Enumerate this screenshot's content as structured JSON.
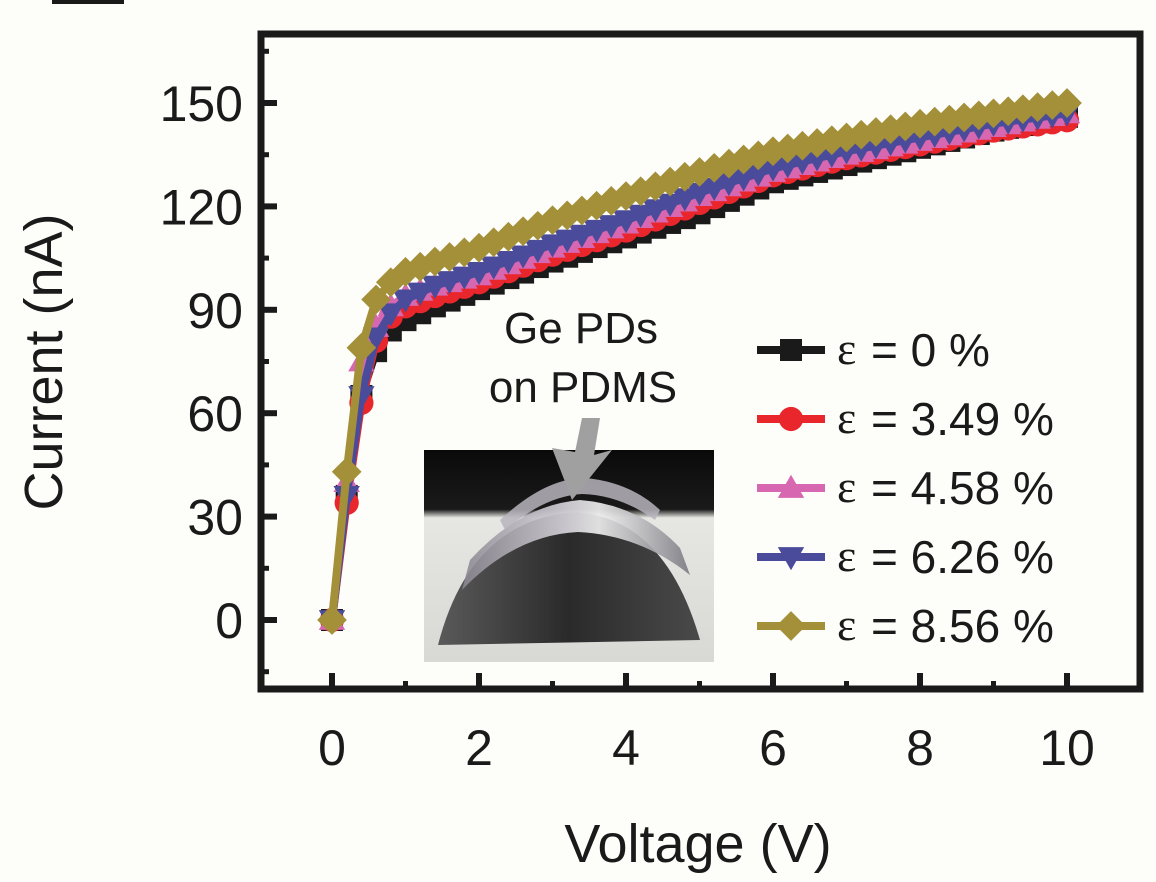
{
  "chart_data": {
    "type": "line",
    "title": "",
    "xlabel": "Voltage (V)",
    "ylabel": "Current (nA)",
    "xlim": [
      -1,
      10.8
    ],
    "ylim": [
      -20,
      170
    ],
    "xticks": [
      0,
      2,
      4,
      6,
      8,
      10
    ],
    "xtick_labels": [
      "0",
      "2",
      "4",
      "6",
      "8",
      "10"
    ],
    "yticks": [
      0,
      30,
      60,
      90,
      120,
      150
    ],
    "ytick_labels": [
      "0",
      "30",
      "60",
      "90",
      "120",
      "150"
    ],
    "grid": false,
    "legend_position": "center-right",
    "annotation": {
      "line1": "Ge PDs",
      "line2": "on PDMS",
      "inset": "photo of bent Ge photodetectors on PDMS over a curved mold",
      "arrow": "gray arrow pointing to device"
    },
    "x_step": 0.2,
    "series": [
      {
        "name": "ε = 0 %",
        "eps": "ε",
        "label": "= 0 %",
        "color": "#1a1a1a",
        "marker": "square",
        "anchors": [
          [
            0,
            0
          ],
          [
            0.2,
            36
          ],
          [
            0.4,
            65
          ],
          [
            0.6,
            78
          ],
          [
            0.8,
            84
          ],
          [
            1.0,
            87
          ],
          [
            1.4,
            91
          ],
          [
            2,
            96
          ],
          [
            3,
            104
          ],
          [
            4,
            111
          ],
          [
            5,
            118
          ],
          [
            6,
            127
          ],
          [
            7,
            132
          ],
          [
            8,
            137
          ],
          [
            9,
            142
          ],
          [
            10,
            146
          ]
        ]
      },
      {
        "name": "ε = 3.49 %",
        "eps": "ε",
        "label": "= 3.49 %",
        "color": "#e8262b",
        "marker": "circle",
        "anchors": [
          [
            0,
            0
          ],
          [
            0.2,
            34
          ],
          [
            0.4,
            63
          ],
          [
            0.6,
            81
          ],
          [
            0.8,
            88
          ],
          [
            1.0,
            91
          ],
          [
            1.4,
            94
          ],
          [
            2,
            98
          ],
          [
            3,
            106
          ],
          [
            4,
            113
          ],
          [
            5,
            121
          ],
          [
            6,
            129
          ],
          [
            7,
            134
          ],
          [
            8,
            138
          ],
          [
            9,
            142
          ],
          [
            10,
            145
          ]
        ]
      },
      {
        "name": "ε = 4.58 %",
        "eps": "ε",
        "label": "= 4.58 %",
        "color": "#d667b0",
        "marker": "triangle-up",
        "anchors": [
          [
            0,
            0
          ],
          [
            0.2,
            40
          ],
          [
            0.4,
            75
          ],
          [
            0.6,
            85
          ],
          [
            0.8,
            91
          ],
          [
            1.0,
            94
          ],
          [
            1.4,
            97
          ],
          [
            2,
            100
          ],
          [
            3,
            108
          ],
          [
            4,
            115
          ],
          [
            5,
            123
          ],
          [
            6,
            130
          ],
          [
            7,
            135
          ],
          [
            8,
            139
          ],
          [
            9,
            143
          ],
          [
            10,
            147
          ]
        ]
      },
      {
        "name": "ε = 6.26 %",
        "eps": "ε",
        "label": "= 6.26 %",
        "color": "#4b4b9b",
        "marker": "triangle-down",
        "anchors": [
          [
            0,
            0
          ],
          [
            0.2,
            36
          ],
          [
            0.4,
            65
          ],
          [
            0.6,
            82
          ],
          [
            0.8,
            89
          ],
          [
            1.0,
            93
          ],
          [
            1.4,
            97
          ],
          [
            2,
            101
          ],
          [
            3,
            109
          ],
          [
            4,
            116
          ],
          [
            5,
            124
          ],
          [
            6,
            131
          ],
          [
            7,
            136
          ],
          [
            8,
            140
          ],
          [
            9,
            144
          ],
          [
            10,
            147
          ]
        ]
      },
      {
        "name": "ε = 8.56 %",
        "eps": "ε",
        "label": "= 8.56 %",
        "color": "#a39039",
        "marker": "diamond",
        "anchors": [
          [
            0,
            0
          ],
          [
            0.2,
            43
          ],
          [
            0.4,
            79
          ],
          [
            0.6,
            93
          ],
          [
            0.8,
            98
          ],
          [
            1.0,
            101
          ],
          [
            1.4,
            104
          ],
          [
            2,
            108
          ],
          [
            3,
            116
          ],
          [
            4,
            123
          ],
          [
            5,
            130
          ],
          [
            6,
            136
          ],
          [
            7,
            140
          ],
          [
            8,
            144
          ],
          [
            9,
            147
          ],
          [
            10,
            150
          ]
        ]
      }
    ]
  }
}
